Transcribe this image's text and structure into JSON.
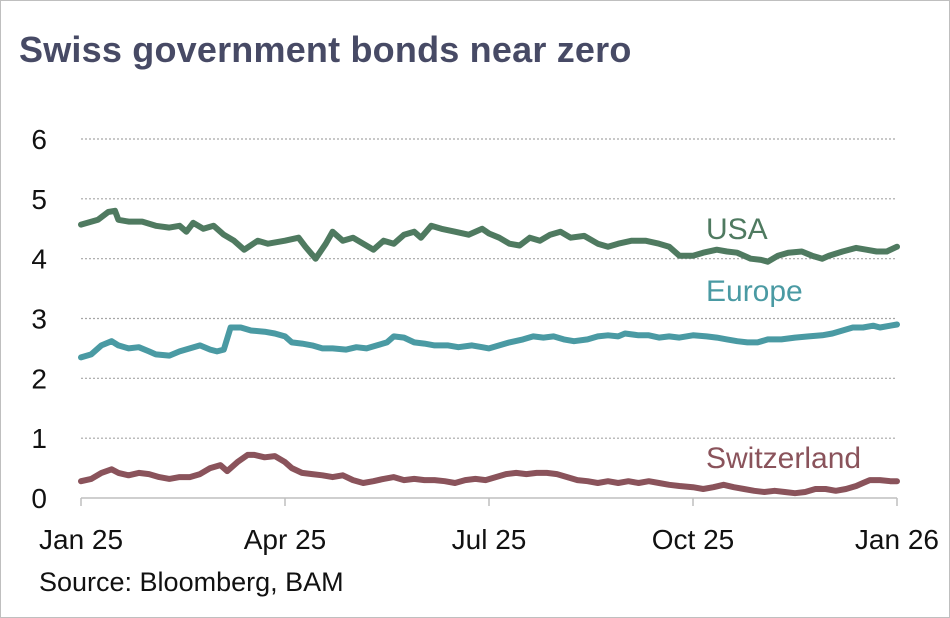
{
  "chart_data": {
    "type": "line",
    "title": "Swiss government bonds near zero",
    "source": "Source: Bloomberg, BAM",
    "xlabel": "",
    "ylabel": "",
    "xlim": [
      0,
      12
    ],
    "ylim": [
      0,
      6
    ],
    "y_ticks": [
      "0",
      "1",
      "2",
      "3",
      "4",
      "5",
      "6"
    ],
    "x_ticks": [
      {
        "label": "Jan 25",
        "x": 0
      },
      {
        "label": "Apr 25",
        "x": 3
      },
      {
        "label": "Jul 25",
        "x": 6
      },
      {
        "label": "Oct 25",
        "x": 9
      },
      {
        "label": "Jan 26",
        "x": 12
      }
    ],
    "grid": "horizontal-dotted",
    "series": [
      {
        "name": "USA",
        "color": "#4f7a60",
        "points": [
          [
            0,
            4.57
          ],
          [
            0.25,
            4.65
          ],
          [
            0.4,
            4.78
          ],
          [
            0.5,
            4.8
          ],
          [
            0.55,
            4.65
          ],
          [
            0.7,
            4.62
          ],
          [
            0.9,
            4.62
          ],
          [
            1.1,
            4.55
          ],
          [
            1.3,
            4.52
          ],
          [
            1.45,
            4.55
          ],
          [
            1.55,
            4.45
          ],
          [
            1.65,
            4.6
          ],
          [
            1.8,
            4.5
          ],
          [
            1.95,
            4.55
          ],
          [
            2.1,
            4.4
          ],
          [
            2.25,
            4.3
          ],
          [
            2.4,
            4.15
          ],
          [
            2.6,
            4.3
          ],
          [
            2.75,
            4.25
          ],
          [
            3.0,
            4.3
          ],
          [
            3.2,
            4.35
          ],
          [
            3.3,
            4.2
          ],
          [
            3.45,
            4.0
          ],
          [
            3.6,
            4.25
          ],
          [
            3.7,
            4.45
          ],
          [
            3.85,
            4.3
          ],
          [
            4.0,
            4.35
          ],
          [
            4.15,
            4.25
          ],
          [
            4.3,
            4.15
          ],
          [
            4.45,
            4.3
          ],
          [
            4.6,
            4.25
          ],
          [
            4.75,
            4.4
          ],
          [
            4.9,
            4.45
          ],
          [
            5.0,
            4.35
          ],
          [
            5.15,
            4.55
          ],
          [
            5.3,
            4.5
          ],
          [
            5.5,
            4.45
          ],
          [
            5.7,
            4.4
          ],
          [
            5.9,
            4.5
          ],
          [
            6.0,
            4.42
          ],
          [
            6.15,
            4.35
          ],
          [
            6.3,
            4.25
          ],
          [
            6.45,
            4.22
          ],
          [
            6.6,
            4.35
          ],
          [
            6.75,
            4.3
          ],
          [
            6.9,
            4.4
          ],
          [
            7.05,
            4.45
          ],
          [
            7.2,
            4.35
          ],
          [
            7.4,
            4.38
          ],
          [
            7.6,
            4.25
          ],
          [
            7.75,
            4.2
          ],
          [
            7.9,
            4.25
          ],
          [
            8.1,
            4.3
          ],
          [
            8.3,
            4.3
          ],
          [
            8.5,
            4.25
          ],
          [
            8.65,
            4.2
          ],
          [
            8.8,
            4.05
          ],
          [
            9.0,
            4.05
          ],
          [
            9.15,
            4.1
          ],
          [
            9.35,
            4.15
          ],
          [
            9.5,
            4.12
          ],
          [
            9.65,
            4.1
          ],
          [
            9.85,
            4.0
          ],
          [
            10.0,
            3.98
          ],
          [
            10.1,
            3.95
          ],
          [
            10.25,
            4.05
          ],
          [
            10.4,
            4.1
          ],
          [
            10.6,
            4.12
          ],
          [
            10.75,
            4.05
          ],
          [
            10.9,
            4.0
          ],
          [
            11.0,
            4.05
          ],
          [
            11.2,
            4.12
          ],
          [
            11.4,
            4.18
          ],
          [
            11.55,
            4.15
          ],
          [
            11.7,
            4.12
          ],
          [
            11.85,
            4.12
          ],
          [
            12.0,
            4.2
          ]
        ]
      },
      {
        "name": "Europe",
        "color": "#4a9aa3",
        "points": [
          [
            0,
            2.35
          ],
          [
            0.15,
            2.4
          ],
          [
            0.3,
            2.55
          ],
          [
            0.45,
            2.62
          ],
          [
            0.55,
            2.55
          ],
          [
            0.7,
            2.5
          ],
          [
            0.85,
            2.52
          ],
          [
            1.0,
            2.45
          ],
          [
            1.1,
            2.4
          ],
          [
            1.3,
            2.38
          ],
          [
            1.45,
            2.45
          ],
          [
            1.6,
            2.5
          ],
          [
            1.75,
            2.55
          ],
          [
            1.9,
            2.48
          ],
          [
            2.0,
            2.45
          ],
          [
            2.1,
            2.48
          ],
          [
            2.2,
            2.85
          ],
          [
            2.35,
            2.85
          ],
          [
            2.5,
            2.8
          ],
          [
            2.7,
            2.78
          ],
          [
            2.85,
            2.75
          ],
          [
            3.0,
            2.7
          ],
          [
            3.1,
            2.6
          ],
          [
            3.25,
            2.58
          ],
          [
            3.4,
            2.55
          ],
          [
            3.55,
            2.5
          ],
          [
            3.7,
            2.5
          ],
          [
            3.9,
            2.48
          ],
          [
            4.05,
            2.52
          ],
          [
            4.2,
            2.5
          ],
          [
            4.35,
            2.55
          ],
          [
            4.5,
            2.6
          ],
          [
            4.6,
            2.7
          ],
          [
            4.75,
            2.68
          ],
          [
            4.9,
            2.6
          ],
          [
            5.05,
            2.58
          ],
          [
            5.2,
            2.55
          ],
          [
            5.4,
            2.55
          ],
          [
            5.55,
            2.52
          ],
          [
            5.75,
            2.55
          ],
          [
            5.9,
            2.52
          ],
          [
            6.0,
            2.5
          ],
          [
            6.15,
            2.55
          ],
          [
            6.3,
            2.6
          ],
          [
            6.5,
            2.65
          ],
          [
            6.65,
            2.7
          ],
          [
            6.8,
            2.68
          ],
          [
            6.95,
            2.7
          ],
          [
            7.1,
            2.65
          ],
          [
            7.25,
            2.62
          ],
          [
            7.45,
            2.65
          ],
          [
            7.6,
            2.7
          ],
          [
            7.75,
            2.72
          ],
          [
            7.9,
            2.7
          ],
          [
            8.0,
            2.75
          ],
          [
            8.2,
            2.72
          ],
          [
            8.35,
            2.72
          ],
          [
            8.5,
            2.68
          ],
          [
            8.65,
            2.7
          ],
          [
            8.8,
            2.68
          ],
          [
            9.0,
            2.72
          ],
          [
            9.2,
            2.7
          ],
          [
            9.35,
            2.68
          ],
          [
            9.5,
            2.65
          ],
          [
            9.65,
            2.62
          ],
          [
            9.8,
            2.6
          ],
          [
            9.95,
            2.6
          ],
          [
            10.1,
            2.65
          ],
          [
            10.3,
            2.65
          ],
          [
            10.5,
            2.68
          ],
          [
            10.7,
            2.7
          ],
          [
            10.9,
            2.72
          ],
          [
            11.05,
            2.75
          ],
          [
            11.2,
            2.8
          ],
          [
            11.35,
            2.85
          ],
          [
            11.5,
            2.85
          ],
          [
            11.65,
            2.88
          ],
          [
            11.75,
            2.85
          ],
          [
            11.9,
            2.88
          ],
          [
            12.0,
            2.9
          ]
        ]
      },
      {
        "name": "Switzerland",
        "color": "#8a535b",
        "points": [
          [
            0,
            0.28
          ],
          [
            0.15,
            0.32
          ],
          [
            0.3,
            0.42
          ],
          [
            0.45,
            0.48
          ],
          [
            0.55,
            0.42
          ],
          [
            0.7,
            0.38
          ],
          [
            0.85,
            0.42
          ],
          [
            1.0,
            0.4
          ],
          [
            1.15,
            0.35
          ],
          [
            1.3,
            0.32
          ],
          [
            1.45,
            0.35
          ],
          [
            1.6,
            0.35
          ],
          [
            1.75,
            0.4
          ],
          [
            1.9,
            0.5
          ],
          [
            2.05,
            0.55
          ],
          [
            2.15,
            0.45
          ],
          [
            2.3,
            0.6
          ],
          [
            2.45,
            0.72
          ],
          [
            2.55,
            0.72
          ],
          [
            2.7,
            0.68
          ],
          [
            2.85,
            0.7
          ],
          [
            3.0,
            0.6
          ],
          [
            3.1,
            0.5
          ],
          [
            3.25,
            0.42
          ],
          [
            3.4,
            0.4
          ],
          [
            3.55,
            0.38
          ],
          [
            3.7,
            0.35
          ],
          [
            3.85,
            0.38
          ],
          [
            4.0,
            0.3
          ],
          [
            4.15,
            0.25
          ],
          [
            4.3,
            0.28
          ],
          [
            4.45,
            0.32
          ],
          [
            4.6,
            0.35
          ],
          [
            4.75,
            0.3
          ],
          [
            4.9,
            0.32
          ],
          [
            5.05,
            0.3
          ],
          [
            5.2,
            0.3
          ],
          [
            5.35,
            0.28
          ],
          [
            5.5,
            0.25
          ],
          [
            5.65,
            0.3
          ],
          [
            5.8,
            0.32
          ],
          [
            5.95,
            0.3
          ],
          [
            6.1,
            0.35
          ],
          [
            6.25,
            0.4
          ],
          [
            6.4,
            0.42
          ],
          [
            6.55,
            0.4
          ],
          [
            6.7,
            0.42
          ],
          [
            6.85,
            0.42
          ],
          [
            7.0,
            0.4
          ],
          [
            7.15,
            0.35
          ],
          [
            7.3,
            0.3
          ],
          [
            7.45,
            0.28
          ],
          [
            7.6,
            0.25
          ],
          [
            7.75,
            0.28
          ],
          [
            7.9,
            0.25
          ],
          [
            8.05,
            0.28
          ],
          [
            8.2,
            0.25
          ],
          [
            8.35,
            0.28
          ],
          [
            8.5,
            0.25
          ],
          [
            8.65,
            0.22
          ],
          [
            8.8,
            0.2
          ],
          [
            9.0,
            0.18
          ],
          [
            9.15,
            0.15
          ],
          [
            9.3,
            0.18
          ],
          [
            9.45,
            0.22
          ],
          [
            9.6,
            0.18
          ],
          [
            9.75,
            0.15
          ],
          [
            9.9,
            0.12
          ],
          [
            10.05,
            0.1
          ],
          [
            10.2,
            0.12
          ],
          [
            10.35,
            0.1
          ],
          [
            10.5,
            0.08
          ],
          [
            10.65,
            0.1
          ],
          [
            10.8,
            0.15
          ],
          [
            10.95,
            0.15
          ],
          [
            11.1,
            0.12
          ],
          [
            11.25,
            0.15
          ],
          [
            11.4,
            0.2
          ],
          [
            11.5,
            0.25
          ],
          [
            11.6,
            0.3
          ],
          [
            11.75,
            0.3
          ],
          [
            11.9,
            0.28
          ],
          [
            12.0,
            0.28
          ]
        ]
      }
    ]
  }
}
